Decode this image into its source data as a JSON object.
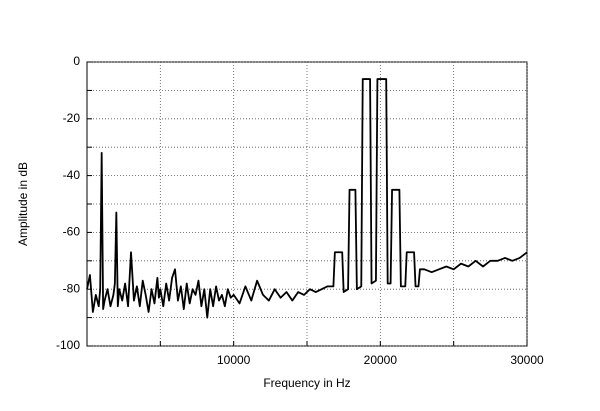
{
  "chart_data": {
    "type": "line",
    "x_label": "Frequency  in Hz",
    "y_label": "Amplitude in dB",
    "xlim": [
      0,
      30000
    ],
    "xticks": [
      10000,
      20000,
      30000
    ],
    "x_minor_ticks": [
      5000,
      15000,
      25000
    ],
    "ylim": [
      -100,
      0
    ],
    "yticks": [
      0,
      -20,
      -40,
      -60,
      -80,
      -100
    ],
    "y_minor_ticks": [
      -10,
      -30,
      -50,
      -70,
      -90
    ],
    "grid": true,
    "x": [
      0,
      200,
      400,
      600,
      800,
      900,
      1000,
      1100,
      1200,
      1400,
      1600,
      1800,
      1900,
      2000,
      2100,
      2200,
      2400,
      2600,
      2800,
      3000,
      3200,
      3400,
      3600,
      3800,
      4000,
      4200,
      4400,
      4600,
      4800,
      4900,
      5000,
      5200,
      5400,
      5600,
      5800,
      6000,
      6200,
      6400,
      6600,
      6800,
      7000,
      7200,
      7400,
      7600,
      7800,
      8000,
      8200,
      8400,
      8600,
      8800,
      9000,
      9200,
      9400,
      9600,
      9800,
      10000,
      10400,
      10800,
      11200,
      11600,
      12000,
      12400,
      12800,
      13200,
      13600,
      14000,
      14400,
      14800,
      15200,
      15600,
      16000,
      16400,
      16800,
      16900,
      17000,
      17400,
      17500,
      17800,
      17900,
      18000,
      18300,
      18400,
      18700,
      18800,
      18900,
      19300,
      19400,
      19700,
      19800,
      19900,
      20000,
      20400,
      20500,
      20700,
      20800,
      20900,
      21300,
      21400,
      21700,
      21800,
      21900,
      22300,
      22400,
      22600,
      22700,
      23000,
      23500,
      24000,
      24500,
      25000,
      25500,
      26000,
      26500,
      27000,
      27500,
      28000,
      28500,
      29000,
      29500,
      30000
    ],
    "series": [
      {
        "color": "#000000",
        "values": [
          -80,
          -75,
          -88,
          -82,
          -86,
          -80,
          -32,
          -87,
          -84,
          -80,
          -86,
          -82,
          -78,
          -53,
          -86,
          -80,
          -84,
          -78,
          -86,
          -67,
          -84,
          -79,
          -86,
          -77,
          -82,
          -88,
          -80,
          -85,
          -76,
          -83,
          -80,
          -86,
          -78,
          -84,
          -76,
          -73,
          -84,
          -79,
          -87,
          -78,
          -85,
          -80,
          -82,
          -77,
          -86,
          -80,
          -90,
          -80,
          -86,
          -79,
          -84,
          -82,
          -86,
          -80,
          -83,
          -82,
          -85,
          -79,
          -84,
          -77,
          -82,
          -84,
          -80,
          -83,
          -81,
          -84,
          -81,
          -82,
          -80,
          -81,
          -80,
          -79,
          -79,
          -67,
          -67,
          -67,
          -81,
          -80,
          -45,
          -45,
          -45,
          -80,
          -79,
          -6,
          -6,
          -6,
          -78,
          -77,
          -6,
          -6,
          -6,
          -6,
          -78,
          -78,
          -45,
          -45,
          -45,
          -79,
          -79,
          -67,
          -67,
          -67,
          -79,
          -79,
          -73,
          -73,
          -74,
          -73,
          -72,
          -73,
          -71,
          -72,
          -70,
          -72,
          -70,
          -70,
          -69,
          -70,
          -69,
          -67
        ]
      }
    ]
  }
}
